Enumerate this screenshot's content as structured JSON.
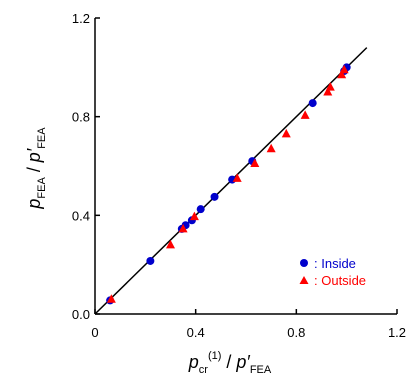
{
  "chart_data": {
    "type": "scatter",
    "title": "",
    "xlabel": {
      "main": "p",
      "sub": "cr",
      "sup": "(1)",
      "slash": " / ",
      "denom_main": "p′",
      "denom_sub": "FEA"
    },
    "ylabel": {
      "main": "p",
      "sub": "FEA",
      "slash": " / ",
      "denom_main": "p′",
      "denom_sub": "FEA"
    },
    "xlim": [
      0,
      1.2
    ],
    "ylim": [
      0,
      1.2
    ],
    "xticks": [
      "0",
      "0.4",
      "0.8",
      "1.2"
    ],
    "yticks": [
      "0.0",
      "0.4",
      "0.8",
      "1.2"
    ],
    "xtick_values": [
      0,
      0.4,
      0.8,
      1.2
    ],
    "ytick_values": [
      0,
      0.4,
      0.8,
      1.2
    ],
    "grid": false,
    "legend_position": "bottom-right",
    "reference_line": {
      "x": [
        0,
        1.08
      ],
      "y": [
        0,
        1.08
      ]
    },
    "series": [
      {
        "name": ": Inside",
        "marker": "circle",
        "color": "#0000cc",
        "x": [
          0.06,
          0.22,
          0.345,
          0.36,
          0.385,
          0.42,
          0.475,
          0.545,
          0.625,
          0.865,
          0.99,
          1.0
        ],
        "y": [
          0.055,
          0.215,
          0.345,
          0.36,
          0.38,
          0.425,
          0.475,
          0.545,
          0.62,
          0.855,
          0.985,
          1.0
        ]
      },
      {
        "name": ": Outside",
        "marker": "triangle",
        "color": "#ff0000",
        "x": [
          0.065,
          0.3,
          0.35,
          0.395,
          0.565,
          0.635,
          0.7,
          0.76,
          0.835,
          0.925,
          0.935,
          0.98,
          0.99
        ],
        "y": [
          0.06,
          0.28,
          0.345,
          0.395,
          0.55,
          0.61,
          0.67,
          0.73,
          0.805,
          0.9,
          0.92,
          0.97,
          0.99
        ]
      }
    ]
  }
}
